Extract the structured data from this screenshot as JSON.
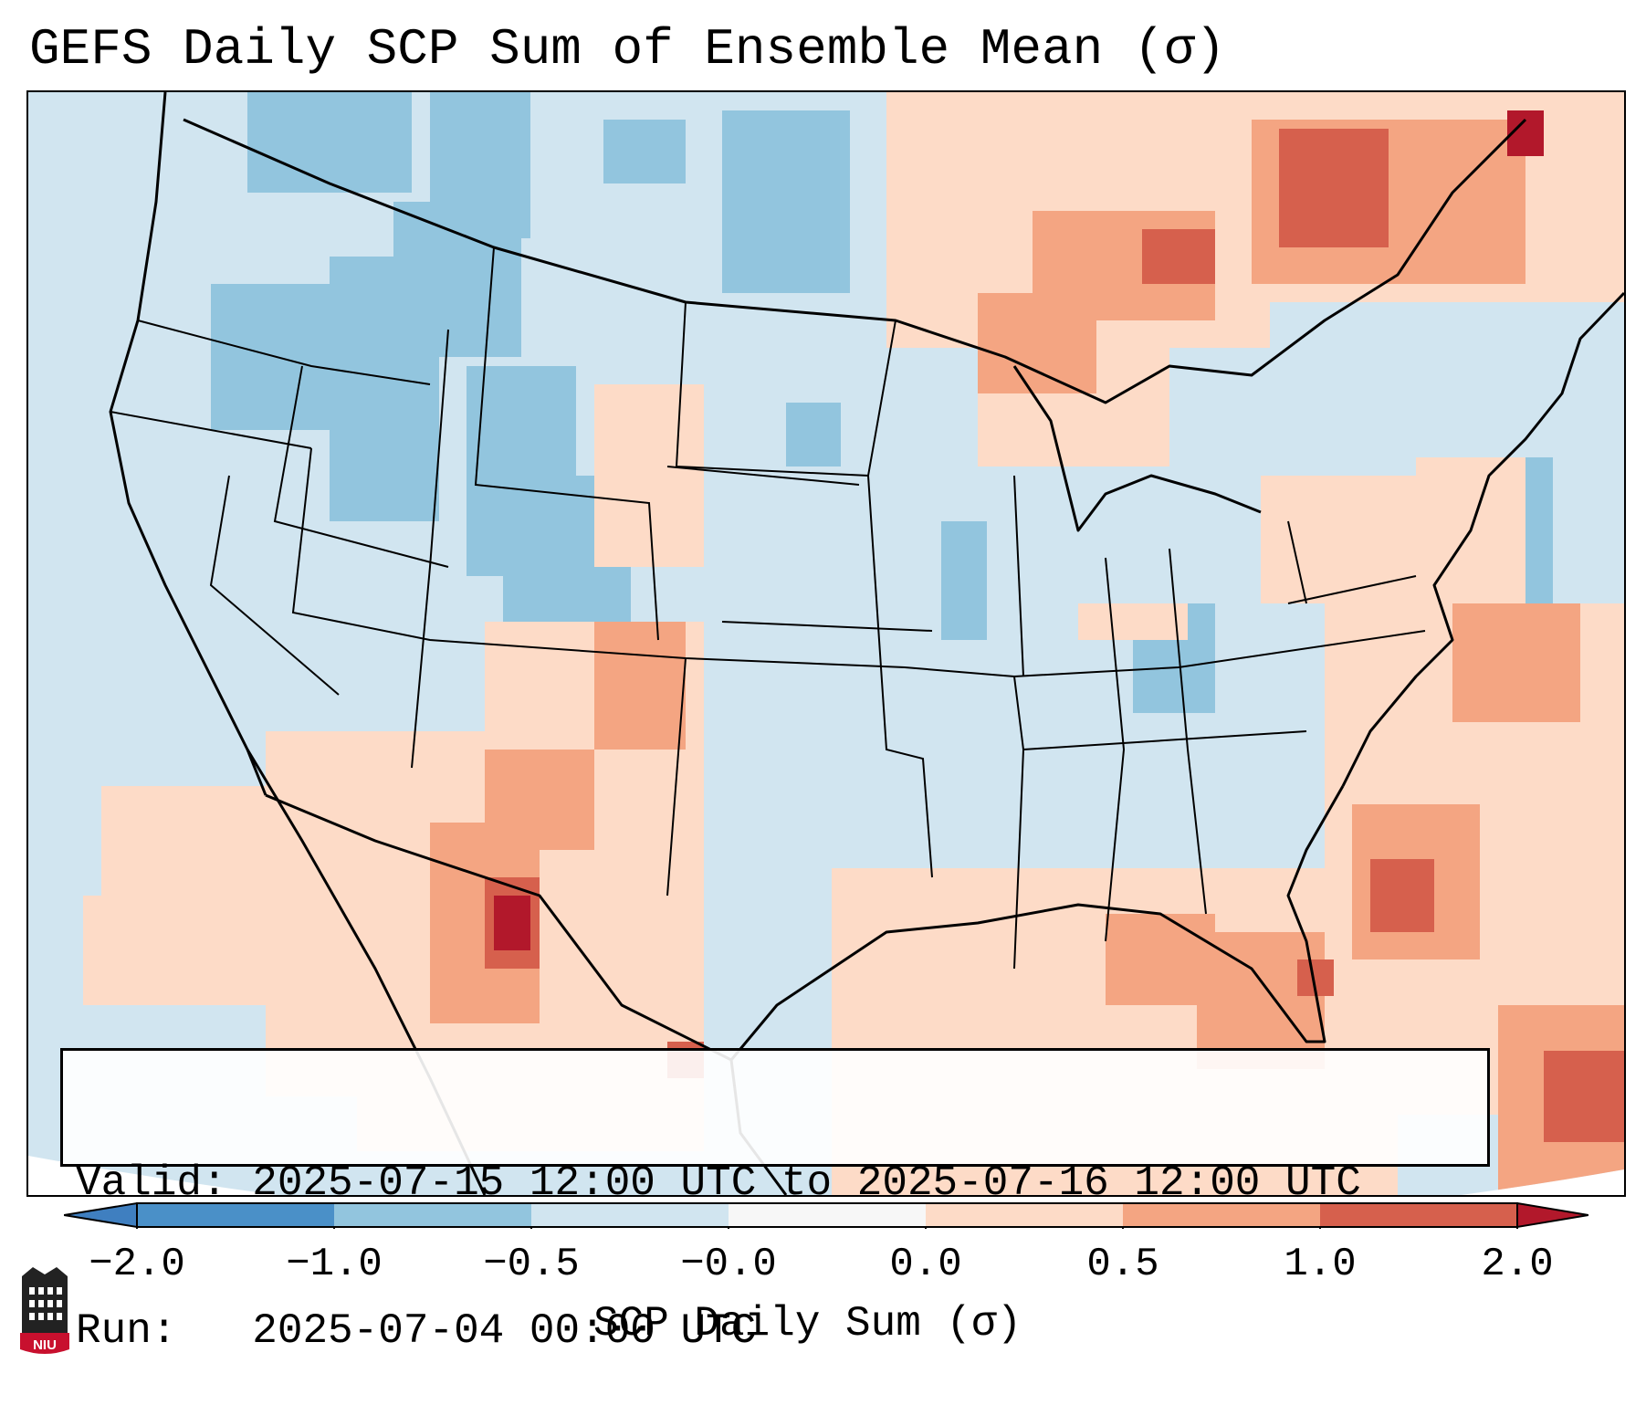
{
  "title": "GEFS Daily SCP Sum of Ensemble Mean (σ)",
  "info": {
    "valid_line": "Valid: 2025-07-15 12:00 UTC to 2025-07-16 12:00 UTC",
    "run_line": "Run:   2025-07-04 00:00 UTC"
  },
  "colorbar": {
    "label": "SCP Daily Sum (σ)",
    "ticks": [
      "−2.0",
      "−1.0",
      "−0.5",
      "−0.0",
      "0.0",
      "0.5",
      "1.0",
      "2.0"
    ],
    "colors": {
      "under": "#3f7fc0",
      "neg_strong": "#4a90c8",
      "neg_mid": "#92c5de",
      "neg_weak": "#d1e5f0",
      "neutral": "#f7f7f7",
      "pos_weak": "#fddbc7",
      "pos_mid": "#f4a582",
      "pos_strong": "#d6604d",
      "over": "#b2182b"
    }
  },
  "map": {
    "projection_background": "#d1e5f0",
    "outline_color": "#000000"
  },
  "logo": {
    "text": "NIU",
    "color": "#c8102e"
  }
}
